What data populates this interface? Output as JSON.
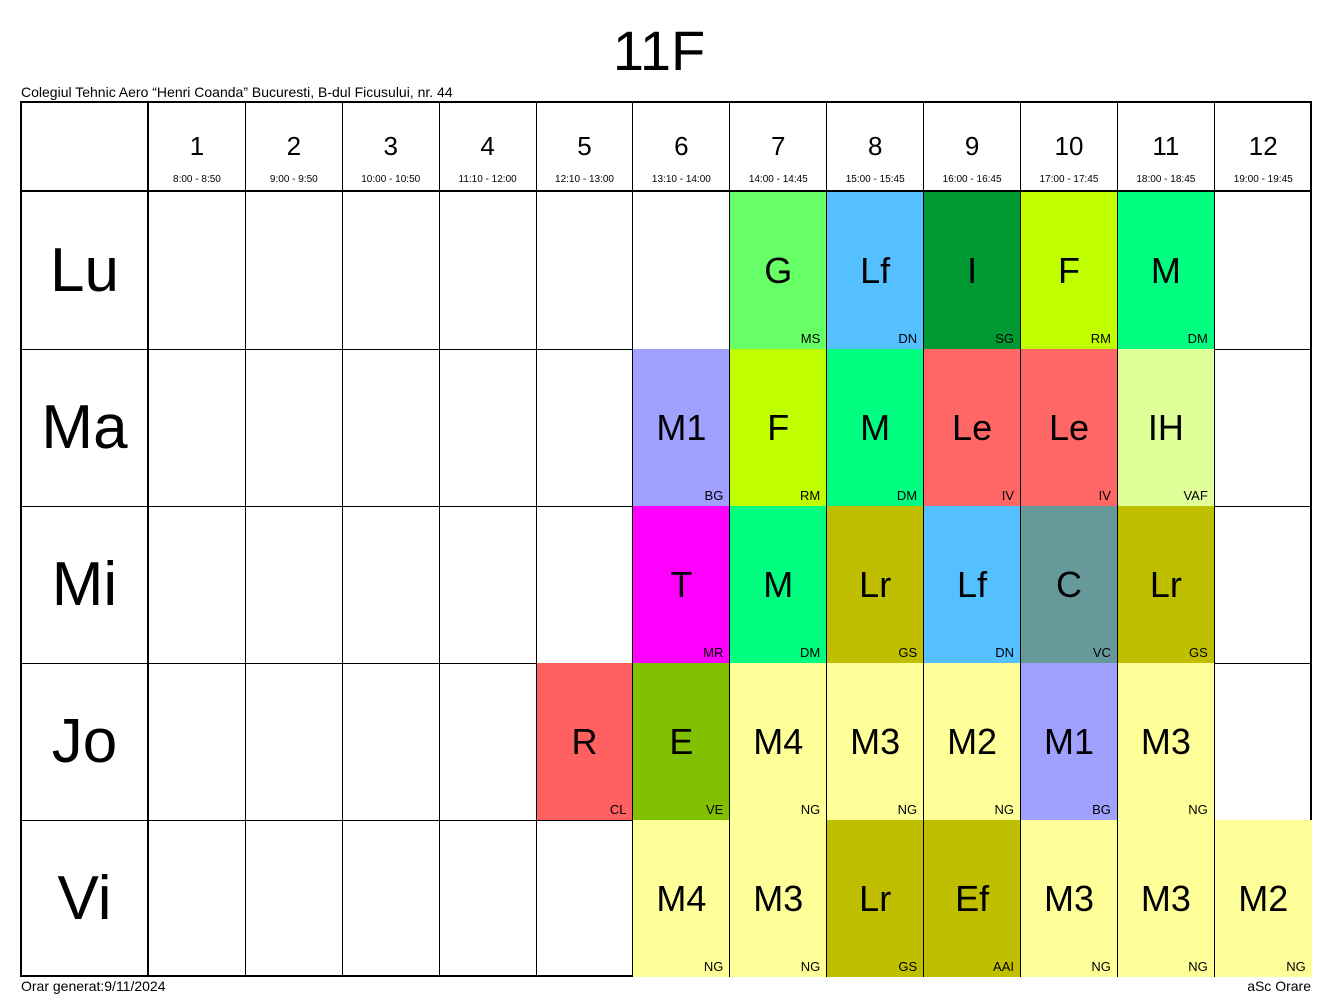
{
  "class_name": "11F",
  "school": "Colegiul Tehnic Aero “Henri Coanda” Bucuresti, B-dul Ficusului, nr. 44",
  "periods": [
    {
      "num": "1",
      "time": "8:00 - 8:50"
    },
    {
      "num": "2",
      "time": "9:00 - 9:50"
    },
    {
      "num": "3",
      "time": "10:00 - 10:50"
    },
    {
      "num": "4",
      "time": "11:10 - 12:00"
    },
    {
      "num": "5",
      "time": "12:10 - 13:00"
    },
    {
      "num": "6",
      "time": "13:10 - 14:00"
    },
    {
      "num": "7",
      "time": "14:00 - 14:45"
    },
    {
      "num": "8",
      "time": "15:00 - 15:45"
    },
    {
      "num": "9",
      "time": "16:00 - 16:45"
    },
    {
      "num": "10",
      "time": "17:00 - 17:45"
    },
    {
      "num": "11",
      "time": "18:00 - 18:45"
    },
    {
      "num": "12",
      "time": "19:00 - 19:45"
    }
  ],
  "days": [
    {
      "label": "Lu",
      "cells": [
        null,
        null,
        null,
        null,
        null,
        null,
        {
          "subject": "G",
          "teacher": "MS",
          "color": "#66ff66"
        },
        {
          "subject": "Lf",
          "teacher": "DN",
          "color": "#55c0ff"
        },
        {
          "subject": "I",
          "teacher": "SG",
          "color": "#009933"
        },
        {
          "subject": "F",
          "teacher": "RM",
          "color": "#bfff00"
        },
        {
          "subject": "M",
          "teacher": "DM",
          "color": "#00ff80"
        },
        null
      ]
    },
    {
      "label": "Ma",
      "cells": [
        null,
        null,
        null,
        null,
        null,
        {
          "subject": "M1",
          "teacher": "BG",
          "color": "#a0a0ff"
        },
        {
          "subject": "F",
          "teacher": "RM",
          "color": "#bfff00"
        },
        {
          "subject": "M",
          "teacher": "DM",
          "color": "#00ff80"
        },
        {
          "subject": "Le",
          "teacher": "IV",
          "color": "#ff6666"
        },
        {
          "subject": "Le",
          "teacher": "IV",
          "color": "#ff6666"
        },
        {
          "subject": "IH",
          "teacher": "VAF",
          "color": "#dfff99"
        },
        null
      ]
    },
    {
      "label": "Mi",
      "cells": [
        null,
        null,
        null,
        null,
        null,
        {
          "subject": "T",
          "teacher": "MR",
          "color": "#ff00ff"
        },
        {
          "subject": "M",
          "teacher": "DM",
          "color": "#00ff80"
        },
        {
          "subject": "Lr",
          "teacher": "GS",
          "color": "#bfbf00"
        },
        {
          "subject": "Lf",
          "teacher": "DN",
          "color": "#55c0ff"
        },
        {
          "subject": "C",
          "teacher": "VC",
          "color": "#669999"
        },
        {
          "subject": "Lr",
          "teacher": "GS",
          "color": "#bfbf00"
        },
        null
      ]
    },
    {
      "label": "Jo",
      "cells": [
        null,
        null,
        null,
        null,
        {
          "subject": "R",
          "teacher": "CL",
          "color": "#ff6060"
        },
        {
          "subject": "E",
          "teacher": "VE",
          "color": "#80c000"
        },
        {
          "subject": "M4",
          "teacher": "NG",
          "color": "#ffff99"
        },
        {
          "subject": "M3",
          "teacher": "NG",
          "color": "#ffff99"
        },
        {
          "subject": "M2",
          "teacher": "NG",
          "color": "#ffff99"
        },
        {
          "subject": "M1",
          "teacher": "BG",
          "color": "#a0a0ff"
        },
        {
          "subject": "M3",
          "teacher": "NG",
          "color": "#ffff99"
        },
        null
      ]
    },
    {
      "label": "Vi",
      "cells": [
        null,
        null,
        null,
        null,
        null,
        {
          "subject": "M4",
          "teacher": "NG",
          "color": "#ffff99"
        },
        {
          "subject": "M3",
          "teacher": "NG",
          "color": "#ffff99"
        },
        {
          "subject": "Lr",
          "teacher": "GS",
          "color": "#bfbf00"
        },
        {
          "subject": "Ef",
          "teacher": "AAI",
          "color": "#bfbf00"
        },
        {
          "subject": "M3",
          "teacher": "NG",
          "color": "#ffff99"
        },
        {
          "subject": "M3",
          "teacher": "NG",
          "color": "#ffff99"
        },
        {
          "subject": "M2",
          "teacher": "NG",
          "color": "#ffff99"
        }
      ]
    }
  ],
  "footer": {
    "generated": "Orar generat:9/11/2024",
    "brand": "aSc Orare"
  }
}
